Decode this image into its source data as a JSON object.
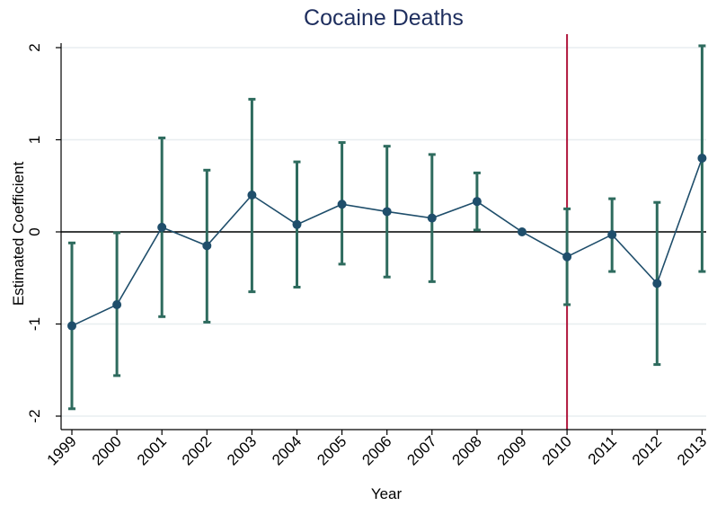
{
  "chart_data": {
    "type": "line",
    "title": "Cocaine Deaths",
    "xlabel": "Year",
    "ylabel": "Estimated Coefficient",
    "ylim": [
      -2.15,
      2.1
    ],
    "yticks": [
      2,
      1,
      0,
      -1,
      -2
    ],
    "ytick_labels": [
      "2",
      "1",
      "0",
      "-1",
      "-2"
    ],
    "grid": true,
    "reference_line_y": 0,
    "vertical_marker_x": "2010",
    "categories": [
      "1999",
      "2000",
      "2001",
      "2002",
      "2003",
      "2004",
      "2005",
      "2006",
      "2007",
      "2008",
      "2009",
      "2010",
      "2011",
      "2012",
      "2013"
    ],
    "series": [
      {
        "values": [
          -1.02,
          -0.79,
          0.05,
          -0.15,
          0.4,
          0.08,
          0.3,
          0.22,
          0.15,
          0.33,
          0.0,
          -0.27,
          -0.03,
          -0.56,
          0.8
        ],
        "ci_low": [
          -1.92,
          -1.56,
          -0.92,
          -0.98,
          -0.65,
          -0.6,
          -0.35,
          -0.49,
          -0.54,
          0.02,
          0.0,
          -0.79,
          -0.43,
          -1.44,
          -0.43
        ],
        "ci_high": [
          -0.12,
          -0.01,
          1.02,
          0.67,
          1.44,
          0.76,
          0.97,
          0.93,
          0.84,
          0.64,
          0.0,
          0.25,
          0.36,
          0.32,
          2.02
        ]
      }
    ],
    "colors": {
      "line": "#1f4e6b",
      "marker": "#1f4e6b",
      "errorbar": "#2e6b5e",
      "vertical_line": "#b0163c",
      "reference_line": "#000000",
      "grid": "#e8eef0",
      "title": "#1e2e5e"
    }
  }
}
